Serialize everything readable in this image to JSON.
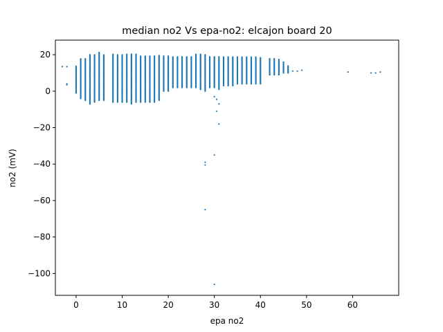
{
  "chart_data": {
    "type": "scatter",
    "title": "median no2 Vs epa-no2: elcajon board 20",
    "xlabel": "epa no2",
    "ylabel": "no2 (mV)",
    "xlim": [
      -4.5,
      70
    ],
    "ylim": [
      -112,
      28
    ],
    "xticks": [
      0,
      10,
      20,
      30,
      40,
      50,
      60
    ],
    "yticks": [
      20,
      0,
      -20,
      -40,
      -60,
      -80,
      -100
    ],
    "xtick_labels": [
      "0",
      "10",
      "20",
      "30",
      "40",
      "50",
      "60"
    ],
    "ytick_labels": [
      "20",
      "0",
      "−20",
      "−40",
      "−60",
      "−80",
      "−100"
    ],
    "grid": false,
    "legend": "none",
    "series_color": "#1f77b4",
    "column_ranges": [
      [
        0,
        -1,
        14
      ],
      [
        1,
        -4,
        18
      ],
      [
        2,
        -5,
        18
      ],
      [
        3,
        -7,
        20
      ],
      [
        4,
        -6,
        20
      ],
      [
        5,
        -5,
        21.5
      ],
      [
        6,
        -5,
        20
      ],
      [
        8,
        -6,
        20.5
      ],
      [
        9,
        -6,
        20
      ],
      [
        10,
        -6,
        20
      ],
      [
        11,
        -6,
        20.5
      ],
      [
        12,
        -7,
        20.5
      ],
      [
        13,
        -6,
        20.5
      ],
      [
        14,
        -6,
        19.5
      ],
      [
        15,
        -6,
        19.5
      ],
      [
        16,
        -6,
        19.5
      ],
      [
        17,
        -6,
        19.5
      ],
      [
        18,
        -5,
        19.5
      ],
      [
        19,
        0,
        19.5
      ],
      [
        20,
        0,
        19.5
      ],
      [
        21,
        2,
        19
      ],
      [
        22,
        2,
        19
      ],
      [
        23,
        2,
        19
      ],
      [
        24,
        2,
        19
      ],
      [
        25,
        2,
        19
      ],
      [
        26,
        2,
        20.5
      ],
      [
        27,
        1,
        20.5
      ],
      [
        28,
        0,
        20
      ],
      [
        29,
        2,
        19
      ],
      [
        30,
        2,
        19
      ],
      [
        31,
        1,
        19
      ],
      [
        32,
        3,
        19
      ],
      [
        33,
        3,
        19
      ],
      [
        34,
        3,
        19
      ],
      [
        35,
        4,
        19
      ],
      [
        36,
        4,
        19
      ],
      [
        37,
        4,
        19
      ],
      [
        38,
        4,
        19
      ],
      [
        39,
        4,
        19
      ],
      [
        40,
        4,
        18.5
      ],
      [
        42,
        9,
        18
      ],
      [
        43,
        9,
        18
      ],
      [
        44,
        9,
        17.5
      ],
      [
        45,
        10,
        16
      ],
      [
        46,
        10,
        14
      ]
    ],
    "extra_points": [
      [
        -3,
        13.5
      ],
      [
        -2,
        13.5
      ],
      [
        -2,
        4
      ],
      [
        -2,
        3.5
      ],
      [
        47,
        11
      ],
      [
        48,
        11
      ],
      [
        49,
        11.5
      ],
      [
        59,
        10.5
      ],
      [
        64,
        10
      ],
      [
        65,
        10
      ],
      [
        66,
        10.5
      ],
      [
        1,
        -3
      ],
      [
        2,
        -5
      ],
      [
        3,
        -7
      ],
      [
        30,
        -3
      ],
      [
        30.5,
        -4.5
      ],
      [
        31,
        -7
      ],
      [
        30.5,
        -11
      ],
      [
        31,
        -18
      ],
      [
        30,
        -35
      ],
      [
        28,
        -39
      ],
      [
        28,
        -40.5
      ],
      [
        28,
        -65
      ],
      [
        30,
        -106
      ]
    ]
  }
}
